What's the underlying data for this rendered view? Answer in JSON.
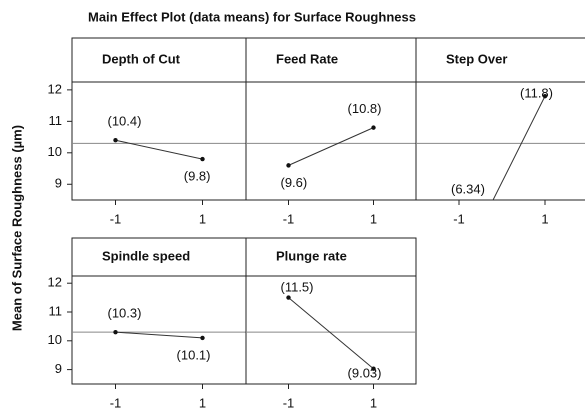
{
  "title": "Main Effect Plot (data means) for Surface Roughness",
  "ylabel": "Mean of Surface Roughness (µm)",
  "chart_data": [
    {
      "type": "line",
      "title": "Depth of Cut",
      "x": [
        -1,
        1
      ],
      "values": [
        10.4,
        9.8
      ],
      "value_labels": [
        "(10.4)",
        "(9.8)"
      ],
      "color": "#333333",
      "reference": 10.3,
      "xlim": [
        -2,
        2
      ],
      "xticks": [
        -1,
        1
      ],
      "ylim": [
        8.5,
        12.25
      ],
      "yticks": [
        9,
        10,
        11,
        12
      ]
    },
    {
      "type": "line",
      "title": "Feed Rate",
      "x": [
        -1,
        1
      ],
      "values": [
        9.6,
        10.8
      ],
      "value_labels": [
        "(9.6)",
        "(10.8)"
      ],
      "color": "#333333",
      "reference": 10.3,
      "xlim": [
        -2,
        2
      ],
      "xticks": [
        -1,
        1
      ],
      "ylim": [
        8.5,
        12.25
      ],
      "yticks": [
        9,
        10,
        11,
        12
      ]
    },
    {
      "type": "line",
      "title": "Step Over",
      "x": [
        -1,
        1
      ],
      "values": [
        6.34,
        11.8
      ],
      "value_labels": [
        "(6.34)",
        "(11.8)"
      ],
      "color": "#333333",
      "reference": 10.3,
      "xlim": [
        -2,
        2
      ],
      "xticks": [
        -1,
        1
      ],
      "ylim": [
        8.5,
        12.25
      ],
      "yticks": [
        9,
        10,
        11,
        12
      ]
    },
    {
      "type": "line",
      "title": "Spindle speed",
      "x": [
        -1,
        1
      ],
      "values": [
        10.3,
        10.1
      ],
      "value_labels": [
        "(10.3)",
        "(10.1)"
      ],
      "color": "#333333",
      "reference": 10.3,
      "xlim": [
        -2,
        2
      ],
      "xticks": [
        -1,
        1
      ],
      "ylim": [
        8.5,
        12.25
      ],
      "yticks": [
        9,
        10,
        11,
        12
      ]
    },
    {
      "type": "line",
      "title": "Plunge rate",
      "x": [
        -1,
        1
      ],
      "values": [
        11.5,
        9.03
      ],
      "value_labels": [
        "(11.5)",
        "(9.03)"
      ],
      "color": "#333333",
      "reference": 10.3,
      "xlim": [
        -2,
        2
      ],
      "xticks": [
        -1,
        1
      ],
      "ylim": [
        8.5,
        12.25
      ],
      "yticks": [
        9,
        10,
        11,
        12
      ]
    }
  ]
}
